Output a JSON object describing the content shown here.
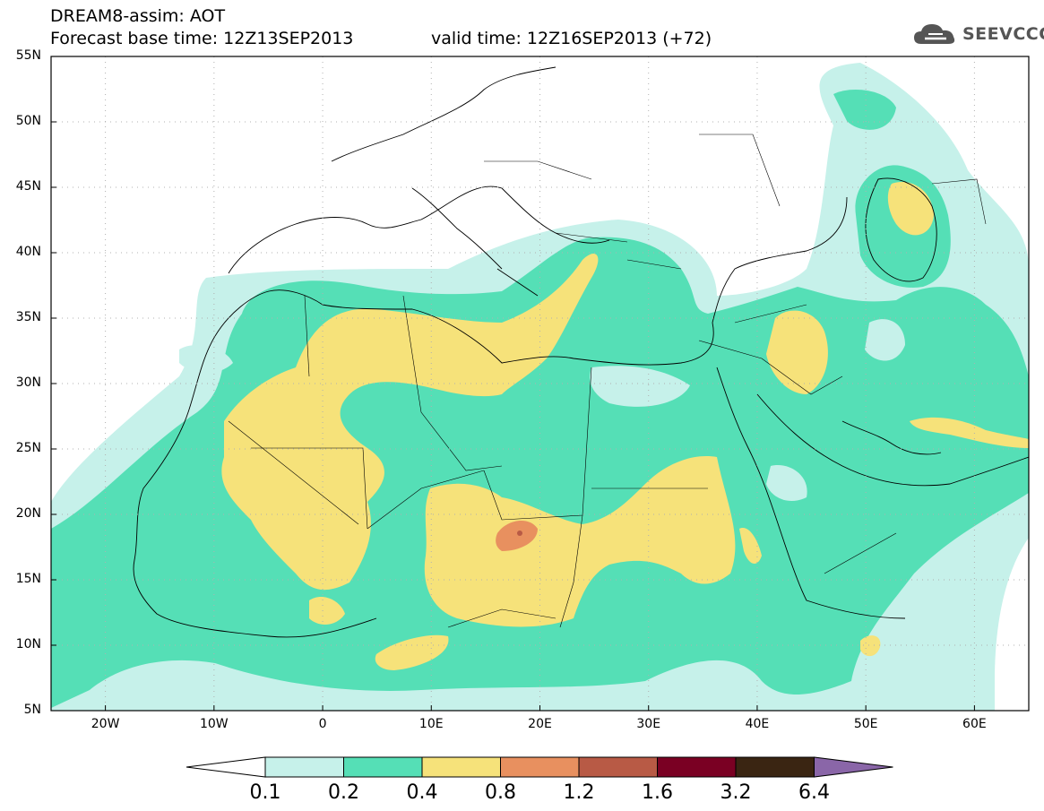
{
  "title": {
    "line1": "DREAM8-assim: AOT",
    "base_time": "Forecast base time: 12Z13SEP2013",
    "valid_time": "valid time: 12Z16SEP2013 (+72)"
  },
  "logo": {
    "text": "SEEVCCC",
    "icon": "cloud-icon"
  },
  "axes": {
    "lat_labels": [
      "55N",
      "50N",
      "45N",
      "40N",
      "35N",
      "30N",
      "25N",
      "20N",
      "15N",
      "10N",
      "5N"
    ],
    "lon_labels": [
      "20W",
      "10W",
      "0",
      "10E",
      "20E",
      "30E",
      "40E",
      "50E",
      "60E"
    ],
    "lat_range": [
      5,
      55
    ],
    "lon_range": [
      -25,
      65
    ],
    "grid": "dotted"
  },
  "colorbar": {
    "levels": [
      "0.1",
      "0.2",
      "0.4",
      "0.8",
      "1.2",
      "1.6",
      "3.2",
      "6.4"
    ],
    "colors": [
      "#c6f1ea",
      "#55dfb6",
      "#f6e27a",
      "#e8905f",
      "#b85a45",
      "#7a0023",
      "#3a2512",
      "#8a66a8"
    ]
  },
  "field": {
    "variable": "AOT",
    "palette": {
      "below": "#ffffff",
      "l1": "#c6f1ea",
      "l2": "#55dfb6",
      "l3": "#f6e27a",
      "l4": "#e8905f",
      "l5": "#b85a45"
    }
  }
}
